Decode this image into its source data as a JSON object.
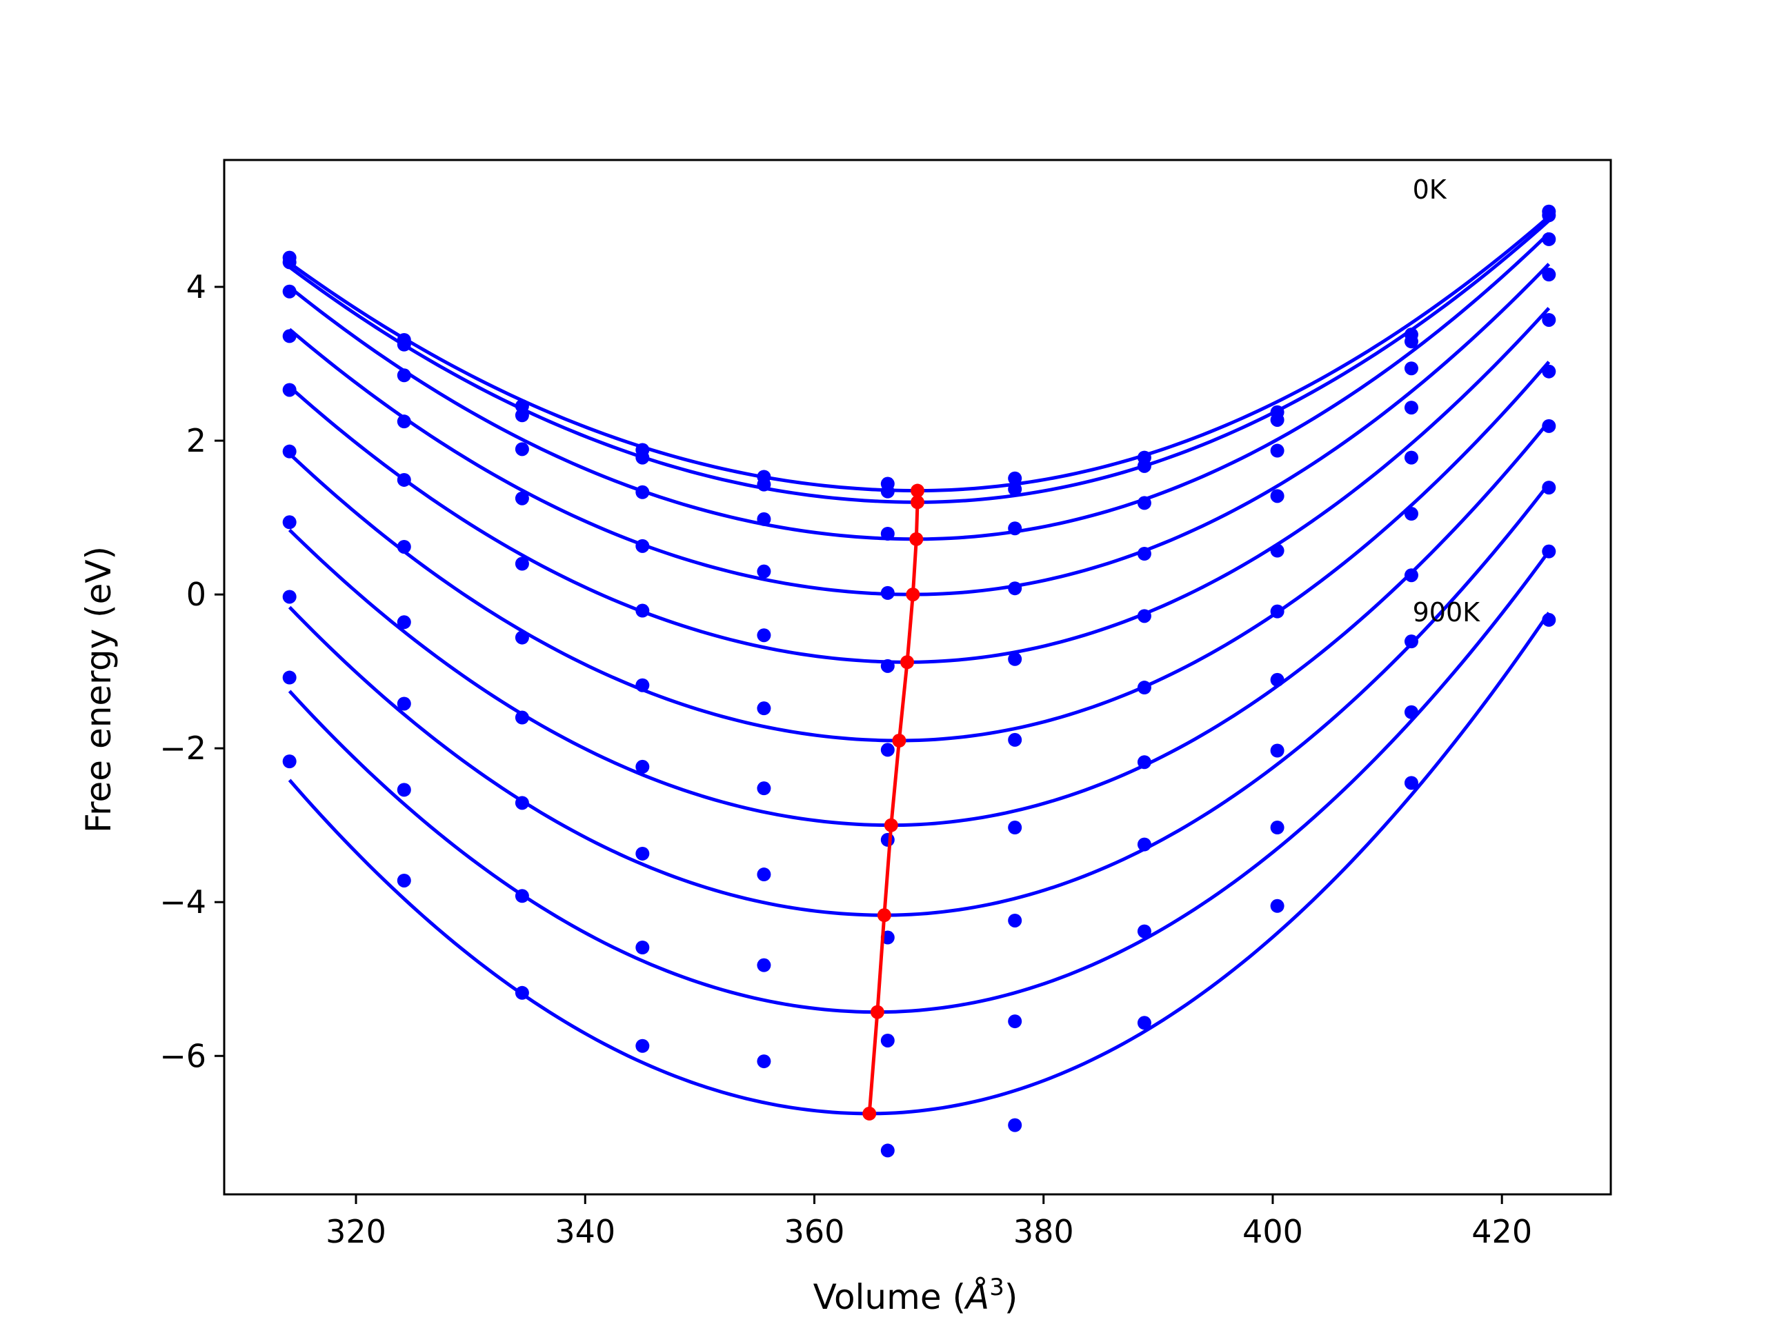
{
  "chart_data": {
    "type": "scatter",
    "xlabel": "Volume (Å³)",
    "xlabel_parts": {
      "base": "Volume (",
      "symbol": "Å",
      "exp": "3",
      "end": ")"
    },
    "ylabel": "Free energy (eV)",
    "xlim": [
      308.5,
      429.5
    ],
    "ylim": [
      -7.8,
      5.65
    ],
    "xticks": [
      320,
      340,
      360,
      380,
      400,
      420
    ],
    "yticks": [
      -6,
      -4,
      -2,
      0,
      2,
      4
    ],
    "xtick_labels": [
      "320",
      "340",
      "360",
      "380",
      "400",
      "420"
    ],
    "ytick_labels": [
      "−6",
      "−4",
      "−2",
      "0",
      "2",
      "4"
    ],
    "grid": false,
    "legend": "none",
    "annotations": [
      {
        "text": "0K",
        "x": 412.2,
        "y": 5.15
      },
      {
        "text": "900K",
        "x": 412.2,
        "y": -0.35
      }
    ],
    "colors": {
      "fit": "#0000ff",
      "points": "#0000ff",
      "minima": "#ff0000"
    },
    "volumes": [
      314.2,
      324.2,
      334.5,
      345.0,
      355.6,
      366.4,
      377.5,
      388.8,
      400.4,
      412.1,
      424.1
    ],
    "series": [
      {
        "points": [
          4.38,
          3.31,
          2.45,
          1.88,
          1.53,
          1.44,
          1.51,
          1.78,
          2.37,
          3.38,
          4.98
        ],
        "fit": {
          "v0": 369.0,
          "e0": 1.35,
          "a_left": 0.000986,
          "a_right": 0.001174
        }
      },
      {
        "points": [
          4.32,
          3.25,
          2.33,
          1.78,
          1.43,
          1.34,
          1.37,
          1.67,
          2.27,
          3.29,
          4.93
        ],
        "fit": {
          "v0": 369.0,
          "e0": 1.2,
          "a_left": 0.001018,
          "a_right": 0.001206
        }
      },
      {
        "points": [
          3.94,
          2.85,
          1.89,
          1.33,
          0.98,
          0.79,
          0.86,
          1.19,
          1.87,
          2.94,
          4.62
        ],
        "fit": {
          "v0": 368.9,
          "e0": 0.72,
          "a_left": 0.001095,
          "a_right": 0.001305
        }
      },
      {
        "points": [
          3.36,
          2.25,
          1.25,
          0.63,
          0.3,
          0.02,
          0.08,
          0.53,
          1.28,
          2.43,
          4.16
        ],
        "fit": {
          "v0": 368.6,
          "e0": 0.0,
          "a_left": 0.001165,
          "a_right": 0.001395
        }
      },
      {
        "points": [
          2.66,
          1.49,
          0.4,
          -0.21,
          -0.53,
          -0.93,
          -0.84,
          -0.28,
          0.57,
          1.78,
          3.57
        ],
        "fit": {
          "v0": 368.1,
          "e0": -0.88,
          "a_left": 0.001233,
          "a_right": 0.001468
        }
      },
      {
        "points": [
          1.86,
          0.62,
          -0.56,
          -1.18,
          -1.48,
          -2.02,
          -1.89,
          -1.21,
          -0.22,
          1.05,
          2.9
        ],
        "fit": {
          "v0": 367.4,
          "e0": -1.9,
          "a_left": 0.001318,
          "a_right": 0.001532
        }
      },
      {
        "points": [
          0.94,
          -0.36,
          -1.6,
          -2.24,
          -2.52,
          -3.19,
          -3.03,
          -2.18,
          -1.11,
          0.25,
          2.19
        ],
        "fit": {
          "v0": 366.7,
          "e0": -3.0,
          "a_left": 0.001393,
          "a_right": 0.001593
        }
      },
      {
        "points": [
          -0.03,
          -1.42,
          -2.71,
          -3.37,
          -3.64,
          -4.46,
          -4.24,
          -3.25,
          -2.03,
          -0.61,
          1.39
        ],
        "fit": {
          "v0": 366.1,
          "e0": -4.17,
          "a_left": 0.001487,
          "a_right": 0.001668
        }
      },
      {
        "points": [
          -1.08,
          -2.54,
          -3.92,
          -4.59,
          -4.82,
          -5.8,
          -5.55,
          -4.38,
          -3.03,
          -1.53,
          0.56
        ],
        "fit": {
          "v0": 365.5,
          "e0": -5.43,
          "a_left": 0.001586,
          "a_right": 0.001745
        }
      },
      {
        "points": [
          -2.17,
          -3.72,
          -5.18,
          -5.87,
          -6.07,
          -7.23,
          -6.9,
          -5.57,
          -4.05,
          -2.45,
          -0.33
        ],
        "fit": {
          "v0": 364.8,
          "e0": -6.75,
          "a_left": 0.001694,
          "a_right": 0.001852
        }
      }
    ]
  }
}
